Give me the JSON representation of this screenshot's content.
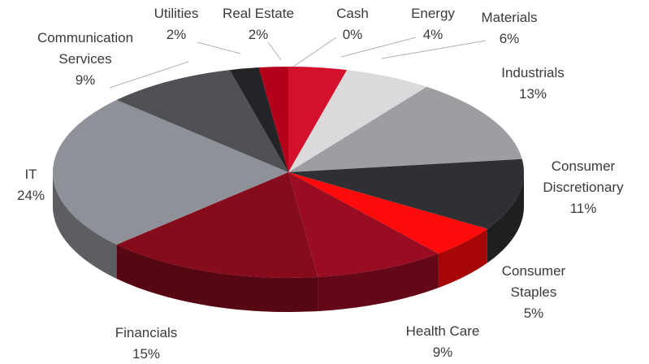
{
  "chart_data": {
    "type": "pie",
    "categories": [
      "Cash",
      "Energy",
      "Materials",
      "Industrials",
      "Consumer Discretionary",
      "Consumer Staples",
      "Health Care",
      "Financials",
      "IT",
      "Communication Services",
      "Utilities",
      "Real Estate"
    ],
    "values": [
      0,
      4,
      6,
      13,
      11,
      5,
      9,
      15,
      24,
      9,
      2,
      2
    ],
    "value_labels": [
      "0%",
      "4%",
      "6%",
      "13%",
      "11%",
      "5%",
      "9%",
      "15%",
      "24%",
      "9%",
      "2%",
      "2%"
    ],
    "colors": [
      "#a3001c",
      "#d3112d",
      "#dadadc",
      "#9c9ea4",
      "#2f3034",
      "#ff0a0a",
      "#9a0c22",
      "#860b1c",
      "#8f9198",
      "#4f5157",
      "#232428",
      "#b5001c"
    ]
  }
}
